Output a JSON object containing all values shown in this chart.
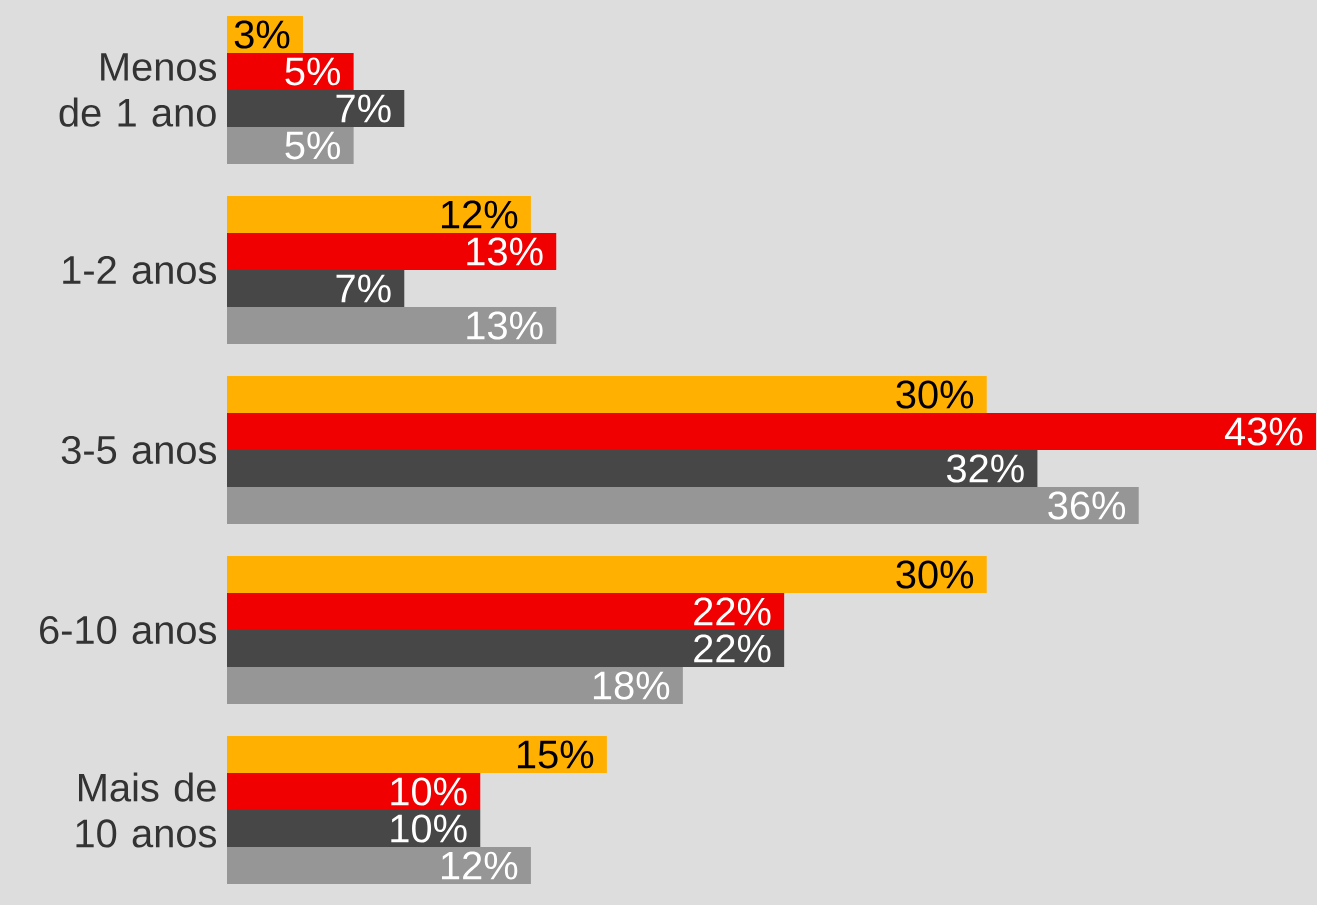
{
  "chart_data": {
    "type": "bar",
    "orientation": "horizontal",
    "tick_labels": "y",
    "categories": [
      "Menos de 1 ano",
      "1-2 anos",
      "3-5 anos",
      "6-10 anos",
      "Mais de 10 anos"
    ],
    "series": [
      {
        "color": "#ffb000",
        "values": [
          3,
          12,
          30,
          30,
          15
        ],
        "value_labels": [
          "3%",
          "12%",
          "30%",
          "30%",
          "15%"
        ]
      },
      {
        "color": "#f00000",
        "values": [
          5,
          13,
          43,
          22,
          10
        ],
        "value_labels": [
          "5%",
          "13%",
          "43%",
          "22%",
          "10%"
        ]
      },
      {
        "color": "#474747",
        "values": [
          7,
          7,
          32,
          22,
          10
        ],
        "value_labels": [
          "7%",
          "7%",
          "32%",
          "22%",
          "10%"
        ]
      },
      {
        "color": "#969696",
        "values": [
          5,
          13,
          36,
          18,
          12
        ],
        "value_labels": [
          "5%",
          "13%",
          "36%",
          "18%",
          "12%"
        ]
      }
    ]
  }
}
